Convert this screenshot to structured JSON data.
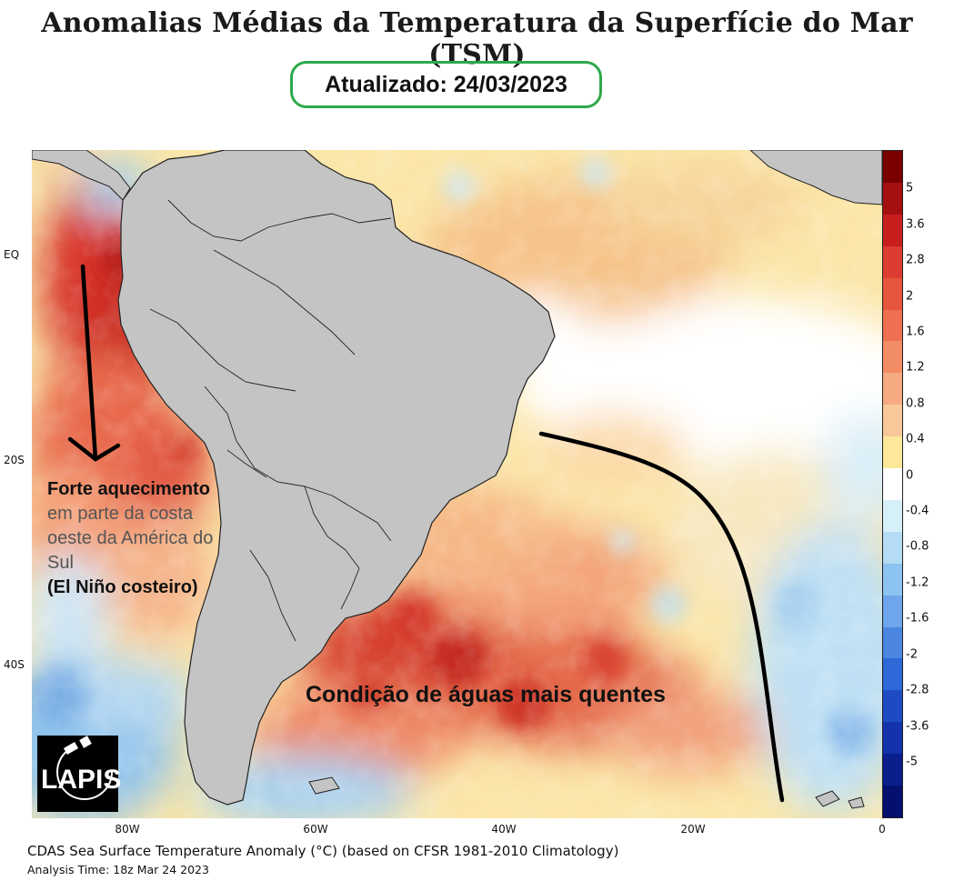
{
  "header": {
    "title": "Anomalias Médias da Temperatura da Superfície do Mar (TSM)",
    "updated": "Atualizado: 24/03/2023"
  },
  "map": {
    "lat_labels": [
      "EQ",
      "20S",
      "40S"
    ],
    "lon_labels": [
      "80W",
      "60W",
      "40W",
      "20W",
      "0"
    ]
  },
  "colorbar": {
    "labels": [
      "5",
      "3.6",
      "2.8",
      "2",
      "1.6",
      "1.2",
      "0.8",
      "0.4",
      "0",
      "-0.4",
      "-0.8",
      "-1.2",
      "-1.6",
      "-2",
      "-2.8",
      "-3.6",
      "-5"
    ],
    "colors": [
      "#7a0000",
      "#a50f0f",
      "#c81e1e",
      "#dc3c32",
      "#e6553c",
      "#ee7050",
      "#f28c64",
      "#f6aa82",
      "#f9c89a",
      "#fde89a",
      "#ffffff",
      "#d6f0fa",
      "#b4dcf5",
      "#8cc3f0",
      "#6ea5eb",
      "#4b87e1",
      "#2d69d7",
      "#1e4bc3",
      "#1432aa",
      "#0a1e8c",
      "#050f6e"
    ]
  },
  "annotations": {
    "left_bold_1": "Forte aquecimento",
    "left_gray": "em parte da costa oeste da América do Sul",
    "left_bold_2": "(El Niño costeiro)",
    "warm_waters": "Condição de águas mais quentes"
  },
  "logo": {
    "text": "LAPIS"
  },
  "footer": {
    "caption": "CDAS Sea Surface Temperature Anomaly (°C) (based on CFSR 1981-2010 Climatology)",
    "analysis_time": "Analysis Time: 18z Mar 24 2023"
  }
}
